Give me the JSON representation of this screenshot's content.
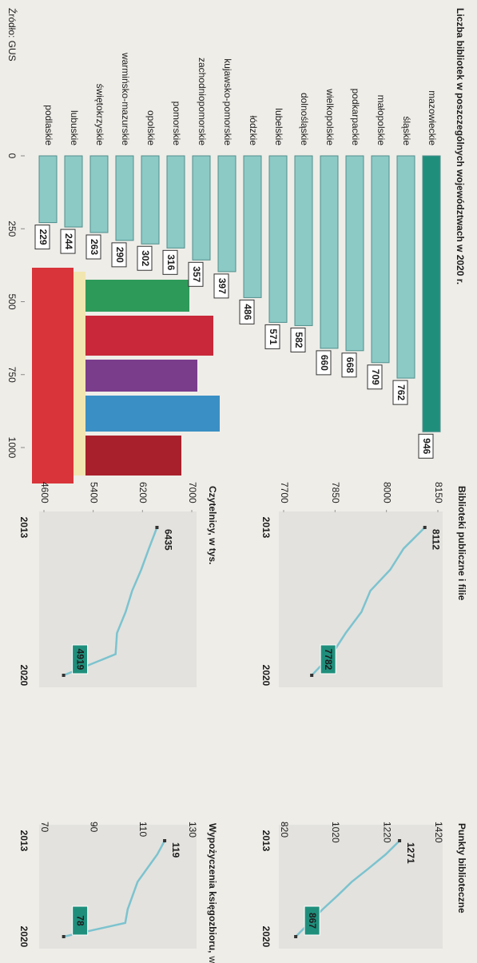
{
  "source": "Źródło: GUS",
  "chart_data": [
    {
      "type": "hbar",
      "title": "Liczba bibliotek w poszczególnych województwach w 2020 r.",
      "categories": [
        "mazowieckie",
        "śląskie",
        "małopolskie",
        "podkarpackie",
        "wielkopolskie",
        "dolnośląskie",
        "lubelskie",
        "łódzkie",
        "kujawsko-pomorskie",
        "zachodniopomorskie",
        "pomorskie",
        "opolskie",
        "warmińsko-mazurskie",
        "świętokrzyskie",
        "lubuskie",
        "podlaskie"
      ],
      "values": [
        946,
        762,
        709,
        668,
        660,
        582,
        571,
        486,
        397,
        357,
        316,
        302,
        290,
        263,
        244,
        229
      ],
      "colors": [
        "#1f8f7c",
        "#8ccac6",
        "#8ccac6",
        "#8ccac6",
        "#8ccac6",
        "#8ccac6",
        "#8ccac6",
        "#8ccac6",
        "#8ccac6",
        "#8ccac6",
        "#8ccac6",
        "#8ccac6",
        "#8ccac6",
        "#8ccac6",
        "#8ccac6",
        "#8ccac6"
      ],
      "xlim": [
        0,
        1000
      ],
      "xticks": [
        0,
        250,
        500,
        750,
        1000
      ]
    },
    {
      "type": "line",
      "title": "Biblioteki publiczne i filie",
      "x": [
        2013,
        2014,
        2015,
        2016,
        2017,
        2018,
        2019,
        2020
      ],
      "values": [
        8112,
        8050,
        8011,
        7953,
        7927,
        7881,
        7841,
        7782
      ],
      "color": "#7cc3cf",
      "xlim": [
        2013,
        2020
      ],
      "xticks": [
        2013,
        2020
      ],
      "ylim": [
        7700,
        8150
      ],
      "yticks": [
        7700,
        7850,
        8000,
        8150
      ]
    },
    {
      "type": "line",
      "title": "Punkty biblioteczne",
      "x": [
        2013,
        2014,
        2015,
        2016,
        2017,
        2018,
        2019,
        2020
      ],
      "values": [
        1271,
        1217,
        1152,
        1085,
        1030,
        972,
        920,
        867
      ],
      "color": "#7cc3cf",
      "xlim": [
        2013,
        2020
      ],
      "xticks": [
        2013,
        2020
      ],
      "ylim": [
        820,
        1420
      ],
      "yticks": [
        820,
        1020,
        1220,
        1420
      ]
    },
    {
      "type": "line",
      "title": "Czytelnicy, w tys.",
      "x": [
        2013,
        2014,
        2015,
        2016,
        2017,
        2018,
        2019,
        2020
      ],
      "values": [
        6435,
        6304,
        6179,
        6032,
        5926,
        5786,
        5763,
        4919
      ],
      "color": "#7cc3cf",
      "xlim": [
        2013,
        2020
      ],
      "xticks": [
        2013,
        2020
      ],
      "ylim": [
        4600,
        7000
      ],
      "yticks": [
        4600,
        5400,
        6200,
        7000
      ]
    },
    {
      "type": "line",
      "title": "Wypożyczenia księgozbioru,",
      "subtitle": "w mln wol.",
      "x": [
        2013,
        2014,
        2015,
        2016,
        2017,
        2018,
        2019,
        2020
      ],
      "values": [
        119,
        116,
        112,
        108,
        106,
        104,
        103,
        78
      ],
      "color": "#7cc3cf",
      "xlim": [
        2013,
        2020
      ],
      "xticks": [
        2013,
        2020
      ],
      "ylim": [
        70,
        130
      ],
      "yticks": [
        70,
        90,
        110,
        130
      ]
    }
  ]
}
